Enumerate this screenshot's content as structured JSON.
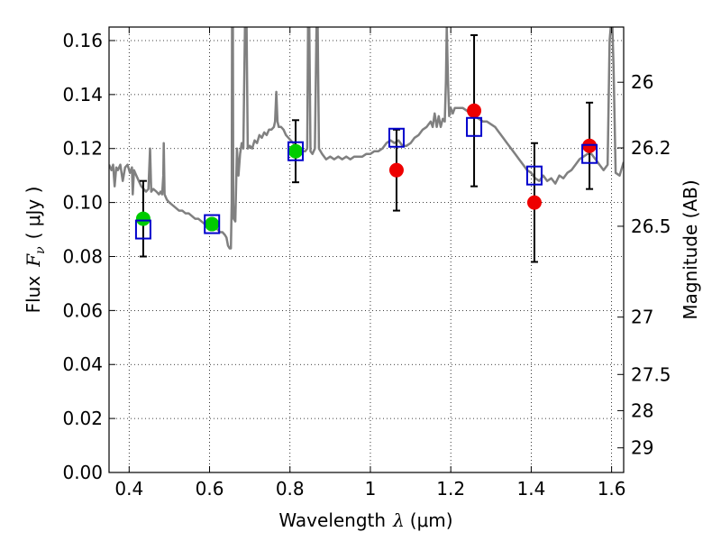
{
  "chart_data": {
    "type": "scatter",
    "xlabel": "Wavelength",
    "xlabel_symbol": "λ",
    "xlabel_unit": "(μm)",
    "ylabel": "Flux",
    "ylabel_symbol": "F",
    "ylabel_sub": "ν",
    "ylabel_unit": "( μJy )",
    "y2label": "Magnitude (AB)",
    "xlim": [
      0.35,
      1.63
    ],
    "ylim": [
      0.0,
      0.165
    ],
    "grid": true,
    "grid_style": "dotted",
    "x_ticks": [
      {
        "value": 0.4,
        "label": "0.4"
      },
      {
        "value": 0.6,
        "label": "0.6"
      },
      {
        "value": 0.8,
        "label": "0.8"
      },
      {
        "value": 1.0,
        "label": "1"
      },
      {
        "value": 1.2,
        "label": "1.2"
      },
      {
        "value": 1.4,
        "label": "1.4"
      },
      {
        "value": 1.6,
        "label": "1.6"
      }
    ],
    "y_ticks": [
      {
        "value": 0.0,
        "label": "0.00"
      },
      {
        "value": 0.02,
        "label": "0.02"
      },
      {
        "value": 0.04,
        "label": "0.04"
      },
      {
        "value": 0.06,
        "label": "0.06"
      },
      {
        "value": 0.08,
        "label": "0.08"
      },
      {
        "value": 0.1,
        "label": "0.10"
      },
      {
        "value": 0.12,
        "label": "0.12"
      },
      {
        "value": 0.14,
        "label": "0.14"
      },
      {
        "value": 0.16,
        "label": "0.16"
      }
    ],
    "y2_ticks": [
      {
        "value": 26,
        "label": "26"
      },
      {
        "value": 26.2,
        "label": "26.2"
      },
      {
        "value": 26.5,
        "label": "26.5"
      },
      {
        "value": 27,
        "label": "27"
      },
      {
        "value": 27.5,
        "label": "27.5"
      },
      {
        "value": 28,
        "label": "28"
      },
      {
        "value": 29,
        "label": "29"
      }
    ],
    "model_spectrum": {
      "color": "#808080",
      "points": [
        [
          0.35,
          0.114
        ],
        [
          0.356,
          0.112
        ],
        [
          0.36,
          0.114
        ],
        [
          0.364,
          0.106
        ],
        [
          0.368,
          0.113
        ],
        [
          0.372,
          0.112
        ],
        [
          0.378,
          0.114
        ],
        [
          0.384,
          0.108
        ],
        [
          0.39,
          0.113
        ],
        [
          0.396,
          0.114
        ],
        [
          0.402,
          0.111
        ],
        [
          0.407,
          0.113
        ],
        [
          0.409,
          0.103
        ],
        [
          0.412,
          0.112
        ],
        [
          0.418,
          0.11
        ],
        [
          0.424,
          0.108
        ],
        [
          0.43,
          0.106
        ],
        [
          0.436,
          0.105
        ],
        [
          0.442,
          0.104
        ],
        [
          0.448,
          0.105
        ],
        [
          0.452,
          0.12
        ],
        [
          0.455,
          0.104
        ],
        [
          0.46,
          0.105
        ],
        [
          0.468,
          0.104
        ],
        [
          0.474,
          0.103
        ],
        [
          0.478,
          0.104
        ],
        [
          0.482,
          0.103
        ],
        [
          0.485,
          0.11
        ],
        [
          0.486,
          0.122
        ],
        [
          0.488,
          0.103
        ],
        [
          0.494,
          0.101
        ],
        [
          0.5,
          0.1
        ],
        [
          0.508,
          0.099
        ],
        [
          0.516,
          0.098
        ],
        [
          0.524,
          0.097
        ],
        [
          0.532,
          0.097
        ],
        [
          0.54,
          0.096
        ],
        [
          0.548,
          0.096
        ],
        [
          0.556,
          0.095
        ],
        [
          0.564,
          0.094
        ],
        [
          0.572,
          0.094
        ],
        [
          0.58,
          0.093
        ],
        [
          0.588,
          0.092
        ],
        [
          0.596,
          0.092
        ],
        [
          0.604,
          0.091
        ],
        [
          0.612,
          0.091
        ],
        [
          0.62,
          0.09
        ],
        [
          0.626,
          0.089
        ],
        [
          0.632,
          0.089
        ],
        [
          0.638,
          0.088
        ],
        [
          0.642,
          0.087
        ],
        [
          0.646,
          0.084
        ],
        [
          0.65,
          0.083
        ],
        [
          0.653,
          0.083
        ],
        [
          0.655,
          0.1
        ],
        [
          0.656,
          0.165
        ],
        [
          0.658,
          0.165
        ],
        [
          0.659,
          0.1
        ],
        [
          0.66,
          0.094
        ],
        [
          0.664,
          0.093
        ],
        [
          0.668,
          0.12
        ],
        [
          0.672,
          0.11
        ],
        [
          0.676,
          0.118
        ],
        [
          0.68,
          0.122
        ],
        [
          0.684,
          0.12
        ],
        [
          0.688,
          0.165
        ],
        [
          0.692,
          0.165
        ],
        [
          0.695,
          0.12
        ],
        [
          0.7,
          0.121
        ],
        [
          0.706,
          0.12
        ],
        [
          0.712,
          0.123
        ],
        [
          0.718,
          0.122
        ],
        [
          0.724,
          0.125
        ],
        [
          0.73,
          0.124
        ],
        [
          0.736,
          0.126
        ],
        [
          0.742,
          0.125
        ],
        [
          0.748,
          0.127
        ],
        [
          0.754,
          0.127
        ],
        [
          0.76,
          0.128
        ],
        [
          0.763,
          0.13
        ],
        [
          0.766,
          0.141
        ],
        [
          0.769,
          0.13
        ],
        [
          0.772,
          0.128
        ],
        [
          0.778,
          0.128
        ],
        [
          0.784,
          0.127
        ],
        [
          0.79,
          0.125
        ],
        [
          0.796,
          0.124
        ],
        [
          0.802,
          0.123
        ],
        [
          0.808,
          0.122
        ],
        [
          0.814,
          0.121
        ],
        [
          0.82,
          0.12
        ],
        [
          0.826,
          0.12
        ],
        [
          0.832,
          0.119
        ],
        [
          0.838,
          0.119
        ],
        [
          0.843,
          0.12
        ],
        [
          0.845,
          0.165
        ],
        [
          0.848,
          0.165
        ],
        [
          0.851,
          0.119
        ],
        [
          0.856,
          0.118
        ],
        [
          0.862,
          0.12
        ],
        [
          0.866,
          0.165
        ],
        [
          0.869,
          0.165
        ],
        [
          0.872,
          0.12
        ],
        [
          0.88,
          0.118
        ],
        [
          0.89,
          0.116
        ],
        [
          0.9,
          0.117
        ],
        [
          0.91,
          0.116
        ],
        [
          0.92,
          0.117
        ],
        [
          0.93,
          0.116
        ],
        [
          0.94,
          0.117
        ],
        [
          0.95,
          0.116
        ],
        [
          0.96,
          0.117
        ],
        [
          0.97,
          0.117
        ],
        [
          0.98,
          0.117
        ],
        [
          0.99,
          0.118
        ],
        [
          1.0,
          0.118
        ],
        [
          1.01,
          0.119
        ],
        [
          1.02,
          0.119
        ],
        [
          1.03,
          0.12
        ],
        [
          1.04,
          0.122
        ],
        [
          1.05,
          0.123
        ],
        [
          1.06,
          0.122
        ],
        [
          1.07,
          0.123
        ],
        [
          1.08,
          0.121
        ],
        [
          1.09,
          0.121
        ],
        [
          1.1,
          0.122
        ],
        [
          1.11,
          0.124
        ],
        [
          1.12,
          0.125
        ],
        [
          1.13,
          0.127
        ],
        [
          1.14,
          0.128
        ],
        [
          1.15,
          0.13
        ],
        [
          1.155,
          0.128
        ],
        [
          1.16,
          0.133
        ],
        [
          1.165,
          0.128
        ],
        [
          1.17,
          0.132
        ],
        [
          1.175,
          0.128
        ],
        [
          1.18,
          0.131
        ],
        [
          1.185,
          0.13
        ],
        [
          1.188,
          0.145
        ],
        [
          1.19,
          0.165
        ],
        [
          1.193,
          0.145
        ],
        [
          1.196,
          0.132
        ],
        [
          1.2,
          0.135
        ],
        [
          1.205,
          0.133
        ],
        [
          1.21,
          0.135
        ],
        [
          1.22,
          0.135
        ],
        [
          1.23,
          0.135
        ],
        [
          1.24,
          0.134
        ],
        [
          1.25,
          0.133
        ],
        [
          1.26,
          0.132
        ],
        [
          1.27,
          0.131
        ],
        [
          1.28,
          0.13
        ],
        [
          1.29,
          0.13
        ],
        [
          1.3,
          0.129
        ],
        [
          1.31,
          0.128
        ],
        [
          1.32,
          0.126
        ],
        [
          1.33,
          0.124
        ],
        [
          1.34,
          0.122
        ],
        [
          1.35,
          0.12
        ],
        [
          1.36,
          0.118
        ],
        [
          1.37,
          0.116
        ],
        [
          1.38,
          0.114
        ],
        [
          1.39,
          0.112
        ],
        [
          1.4,
          0.111
        ],
        [
          1.41,
          0.109
        ],
        [
          1.42,
          0.108
        ],
        [
          1.43,
          0.11
        ],
        [
          1.44,
          0.108
        ],
        [
          1.45,
          0.109
        ],
        [
          1.46,
          0.107
        ],
        [
          1.47,
          0.11
        ],
        [
          1.48,
          0.109
        ],
        [
          1.49,
          0.111
        ],
        [
          1.5,
          0.112
        ],
        [
          1.51,
          0.114
        ],
        [
          1.52,
          0.116
        ],
        [
          1.53,
          0.117
        ],
        [
          1.54,
          0.118
        ],
        [
          1.55,
          0.118
        ],
        [
          1.56,
          0.116
        ],
        [
          1.57,
          0.114
        ],
        [
          1.58,
          0.112
        ],
        [
          1.59,
          0.114
        ],
        [
          1.595,
          0.16
        ],
        [
          1.598,
          0.165
        ],
        [
          1.602,
          0.165
        ],
        [
          1.605,
          0.15
        ],
        [
          1.61,
          0.111
        ],
        [
          1.62,
          0.11
        ],
        [
          1.63,
          0.115
        ]
      ]
    },
    "model_photometry": {
      "color": "#0000cc",
      "marker": "open-square",
      "points": [
        {
          "x": 0.435,
          "y": 0.09
        },
        {
          "x": 0.606,
          "y": 0.092
        },
        {
          "x": 0.814,
          "y": 0.119
        },
        {
          "x": 1.065,
          "y": 0.124
        },
        {
          "x": 1.258,
          "y": 0.128
        },
        {
          "x": 1.408,
          "y": 0.11
        },
        {
          "x": 1.545,
          "y": 0.118
        }
      ]
    },
    "optical_detections": {
      "color": "#00cc00",
      "marker": "filled-circle",
      "points": [
        {
          "x": 0.435,
          "y": 0.094,
          "yerr": 0.014
        },
        {
          "x": 0.606,
          "y": 0.092,
          "yerr": 0.0005
        },
        {
          "x": 0.814,
          "y": 0.119,
          "yerr": 0.0115
        }
      ]
    },
    "nir_detections": {
      "color": "#ee0000",
      "marker": "filled-circle",
      "points": [
        {
          "x": 1.065,
          "y": 0.112,
          "yerr": 0.015
        },
        {
          "x": 1.258,
          "y": 0.134,
          "yerr": 0.028
        },
        {
          "x": 1.408,
          "y": 0.1,
          "yerr": 0.022
        },
        {
          "x": 1.545,
          "y": 0.121,
          "yerr": 0.016
        }
      ]
    }
  }
}
